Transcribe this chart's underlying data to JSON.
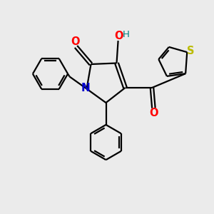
{
  "background_color": "#ebebeb",
  "bond_color": "#000000",
  "atom_colors": {
    "N": "#0000cc",
    "O": "#ff0000",
    "S": "#bbbb00",
    "H": "#008080",
    "C": "#000000"
  },
  "figsize": [
    3.0,
    3.0
  ],
  "dpi": 100
}
